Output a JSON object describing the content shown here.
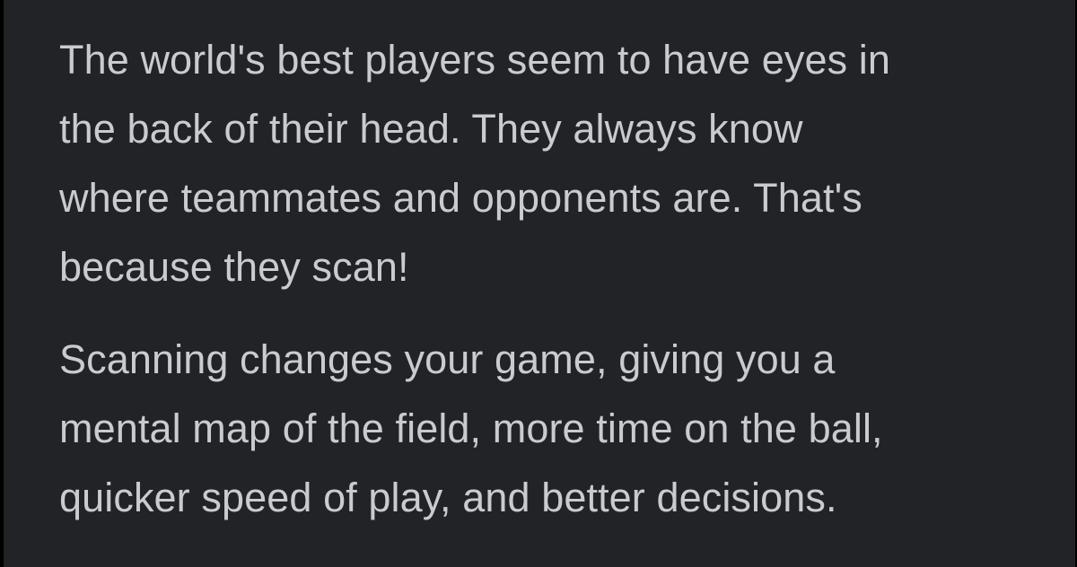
{
  "colors": {
    "background": "#222326",
    "text": "#c9cbcf"
  },
  "paragraphs": [
    "The world's best players seem to have eyes in\nthe back of their head. They always know\nwhere teammates and opponents are. That's\nbecause they scan!",
    "Scanning changes your game, giving you a\nmental map of the field, more time on the ball,\nquicker speed of play, and better decisions."
  ]
}
